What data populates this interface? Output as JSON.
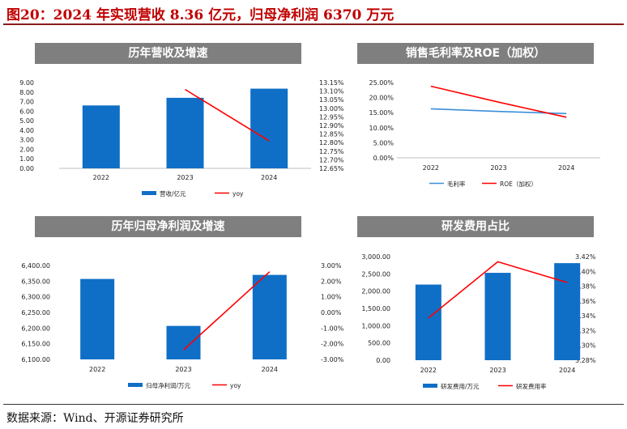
{
  "figure": {
    "title": "图20：2024 年实现营收 8.36 亿元，归母净利润 6370 万元",
    "source": "数据来源：Wind、开源证券研究所"
  },
  "colors": {
    "bar": "#0f6fc6",
    "line": "#ff0000",
    "gm_line": "#3a8fd9",
    "title_red": "#c00000",
    "panel_head": "#7f7f7f"
  },
  "chart_data": [
    {
      "id": "revenue",
      "type": "bar+line",
      "title": "历年营收及增速",
      "categories": [
        "2022",
        "2023",
        "2024"
      ],
      "series": [
        {
          "name": "营收/亿元",
          "kind": "bar",
          "axis": "left",
          "values": [
            6.6,
            7.4,
            8.36
          ]
        },
        {
          "name": "yoy",
          "kind": "line",
          "axis": "right",
          "values": [
            null,
            13.11,
            12.81
          ]
        }
      ],
      "left_axis": {
        "min": 0,
        "max": 9,
        "step": 1,
        "labels": [
          "0.00",
          "1.00",
          "2.00",
          "3.00",
          "4.00",
          "5.00",
          "6.00",
          "7.00",
          "8.00",
          "9.00"
        ]
      },
      "right_axis": {
        "min": 12.65,
        "max": 13.15,
        "step": 0.05,
        "labels": [
          "12.65%",
          "12.70%",
          "12.75%",
          "12.80%",
          "12.85%",
          "12.90%",
          "12.95%",
          "13.00%",
          "13.05%",
          "13.10%",
          "13.15%"
        ]
      },
      "legend_position": "bottom"
    },
    {
      "id": "margin",
      "type": "line",
      "title": "销售毛利率及ROE（加权）",
      "categories": [
        "2022",
        "2023",
        "2024"
      ],
      "series": [
        {
          "name": "毛利率",
          "kind": "line",
          "color_key": "gm_line",
          "values": [
            16.3,
            15.4,
            14.7
          ]
        },
        {
          "name": "ROE（加权）",
          "kind": "line",
          "color_key": "line",
          "values": [
            23.8,
            18.5,
            13.5
          ]
        }
      ],
      "left_axis": {
        "min": 0,
        "max": 25,
        "step": 5,
        "labels": [
          "0.00%",
          "5.00%",
          "10.00%",
          "15.00%",
          "20.00%",
          "25.00%"
        ]
      },
      "legend_position": "bottom"
    },
    {
      "id": "netprofit",
      "type": "bar+line",
      "title": "历年归母净利润及增速",
      "categories": [
        "2022",
        "2023",
        "2024"
      ],
      "series": [
        {
          "name": "归母净利润/万元",
          "kind": "bar",
          "axis": "left",
          "values": [
            6357,
            6207,
            6370
          ]
        },
        {
          "name": "yoy",
          "kind": "line",
          "axis": "right",
          "values": [
            null,
            -2.4,
            2.6
          ]
        }
      ],
      "left_axis": {
        "min": 6100,
        "max": 6400,
        "step": 50,
        "labels": [
          "6,100.00",
          "6,150.00",
          "6,200.00",
          "6,250.00",
          "6,300.00",
          "6,350.00",
          "6,400.00"
        ]
      },
      "right_axis": {
        "min": -3,
        "max": 3,
        "step": 1,
        "labels": [
          "-3.00%",
          "-2.00%",
          "-1.00%",
          "0.00%",
          "1.00%",
          "2.00%",
          "3.00%"
        ]
      },
      "legend_position": "bottom"
    },
    {
      "id": "rnd",
      "type": "bar+line",
      "title": "研发费用占比",
      "categories": [
        "2022",
        "2023",
        "2024"
      ],
      "series": [
        {
          "name": "研发费用/万元",
          "kind": "bar",
          "axis": "left",
          "values": [
            2190,
            2530,
            2810
          ]
        },
        {
          "name": "研发费用率",
          "kind": "line",
          "axis": "right",
          "values": [
            3.337,
            3.413,
            3.385
          ]
        }
      ],
      "left_axis": {
        "min": 0,
        "max": 3000,
        "step": 500,
        "labels": [
          "0.00",
          "500.00",
          "1,000.00",
          "1,500.00",
          "2,000.00",
          "2,500.00",
          "3,000.00"
        ]
      },
      "right_axis": {
        "min": 3.28,
        "max": 3.42,
        "step": 0.02,
        "labels": [
          "3.28%",
          "3.30%",
          "3.32%",
          "3.34%",
          "3.36%",
          "3.38%",
          "3.40%",
          "3.42%"
        ]
      },
      "legend_position": "bottom"
    }
  ]
}
